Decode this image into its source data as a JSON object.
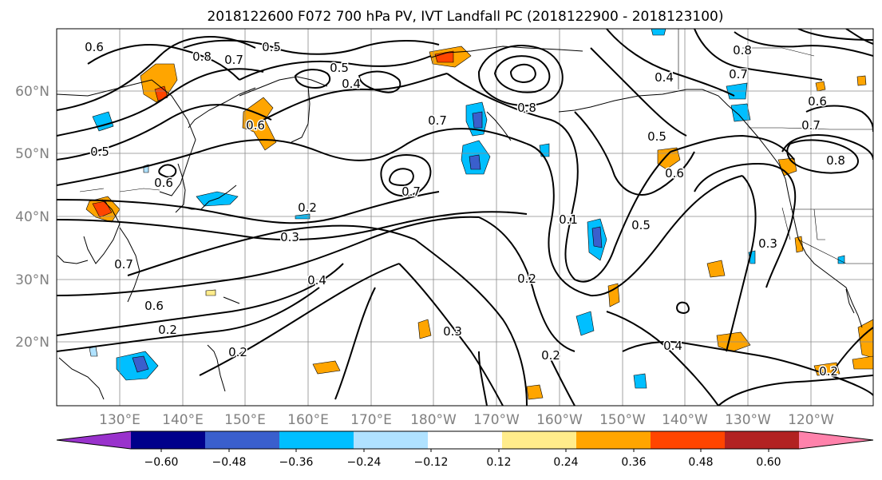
{
  "title": "2018122600 F072 700 hPa PV, IVT Landfall PC (2018122900 - 2018123100)",
  "map": {
    "lat_labels": [
      "60°N",
      "50°N",
      "40°N",
      "30°N",
      "20°N"
    ],
    "lon_labels": [
      "130°E",
      "140°E",
      "150°E",
      "160°E",
      "170°E",
      "180°W",
      "170°W",
      "160°W",
      "150°W",
      "140°W",
      "130°W",
      "120°W"
    ],
    "contour_labels": [
      "0.6",
      "0.8",
      "0.7",
      "0.5",
      "0.5",
      "0.4",
      "0.6",
      "0.5",
      "0.6",
      "0.7",
      "0.8",
      "0.7",
      "0.2",
      "0.3",
      "0.4",
      "0.6",
      "0.2",
      "0.2",
      "0.7",
      "0.2",
      "0.3",
      "0.2",
      "0.5",
      "0.6",
      "0.5",
      "0.3",
      "0.4",
      "0.2",
      "0.7",
      "0.6",
      "0.8",
      "0.4",
      "0.8",
      "0.1",
      "0.7"
    ]
  },
  "colorbar": {
    "colors": [
      "#9932CC",
      "#00008B",
      "#3A5FCD",
      "#00BFFF",
      "#B0E2FF",
      "#FFFFFF",
      "#FFEC8B",
      "#FFA500",
      "#FF4500",
      "#B22222",
      "#FF82AB"
    ],
    "tick_labels": [
      "−0.60",
      "−0.48",
      "−0.36",
      "−0.24",
      "−0.12",
      "0.12",
      "0.24",
      "0.36",
      "0.48",
      "0.60"
    ]
  }
}
